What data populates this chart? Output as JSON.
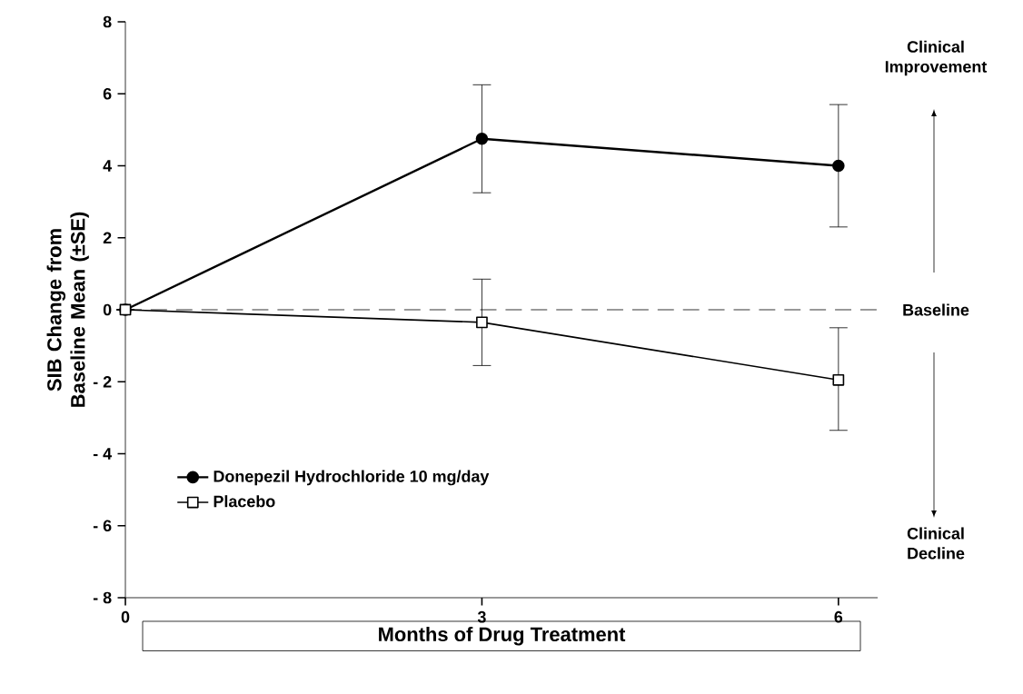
{
  "chart_data": {
    "type": "line",
    "x": [
      0,
      3,
      6
    ],
    "xlim": [
      0,
      6.33
    ],
    "xticks": [
      0,
      3,
      6
    ],
    "ylim": [
      -8,
      8
    ],
    "yticks": [
      8,
      6,
      4,
      2,
      0,
      {
        "value": -2,
        "label": "- 2"
      },
      {
        "value": -4,
        "label": "- 4"
      },
      {
        "value": -6,
        "label": "- 6"
      },
      {
        "value": -8,
        "label": "- 8"
      }
    ],
    "xlabel": "Months of Drug Treatment",
    "ylabel": "SIB Change from Baseline Mean (±SE)",
    "series": [
      {
        "name": "Donepezil Hydrochloride 10 mg/day",
        "color": "#000000",
        "marker": "circle",
        "values": [
          0,
          4.75,
          4.0
        ],
        "errors": [
          null,
          [
            3.25,
            6.25
          ],
          [
            2.3,
            5.7
          ]
        ]
      },
      {
        "name": "Placebo",
        "color": "#000000",
        "marker": "square",
        "values": [
          0,
          -0.35,
          -1.95
        ],
        "errors": [
          null,
          [
            -1.55,
            0.85
          ],
          [
            -3.35,
            -0.5
          ]
        ]
      }
    ],
    "ref_lines": [
      {
        "axis": "y",
        "value": 0,
        "label": "Baseline",
        "line_style": "dashed",
        "color": "#000000"
      }
    ],
    "annotations": [
      "Clinical Improvement",
      "Clinical Decline"
    ],
    "legend": "bottom left",
    "line_style": "solid",
    "grid": false
  }
}
